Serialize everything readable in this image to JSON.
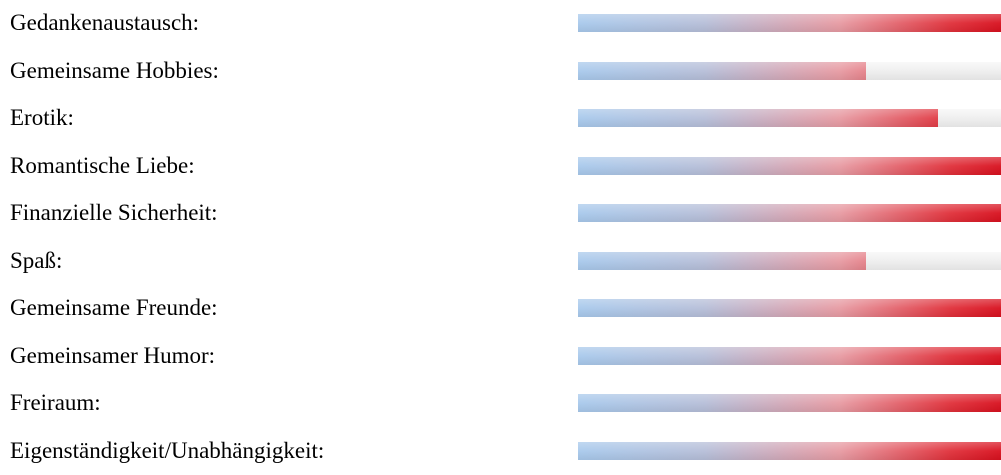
{
  "ratings": [
    {
      "label": "Gedankenaustausch:",
      "level_percent": 100
    },
    {
      "label": "Gemeinsame Hobbies:",
      "level_percent": 68
    },
    {
      "label": "Erotik:",
      "level_percent": 85
    },
    {
      "label": "Romantische Liebe:",
      "level_percent": 100
    },
    {
      "label": "Finanzielle Sicherheit:",
      "level_percent": 100
    },
    {
      "label": "Spaß:",
      "level_percent": 68
    },
    {
      "label": "Gemeinsame Freunde:",
      "level_percent": 100
    },
    {
      "label": "Gemeinsamer Humor:",
      "level_percent": 100
    },
    {
      "label": "Freiraum:",
      "level_percent": 100
    },
    {
      "label": "Eigenständigkeit/Unabhängigkeit:",
      "level_percent": 100
    }
  ],
  "colors": {
    "bar_start": "#a8c9ec",
    "bar_end": "#d8101e",
    "track": "#eeeeee",
    "text": "#000000"
  }
}
